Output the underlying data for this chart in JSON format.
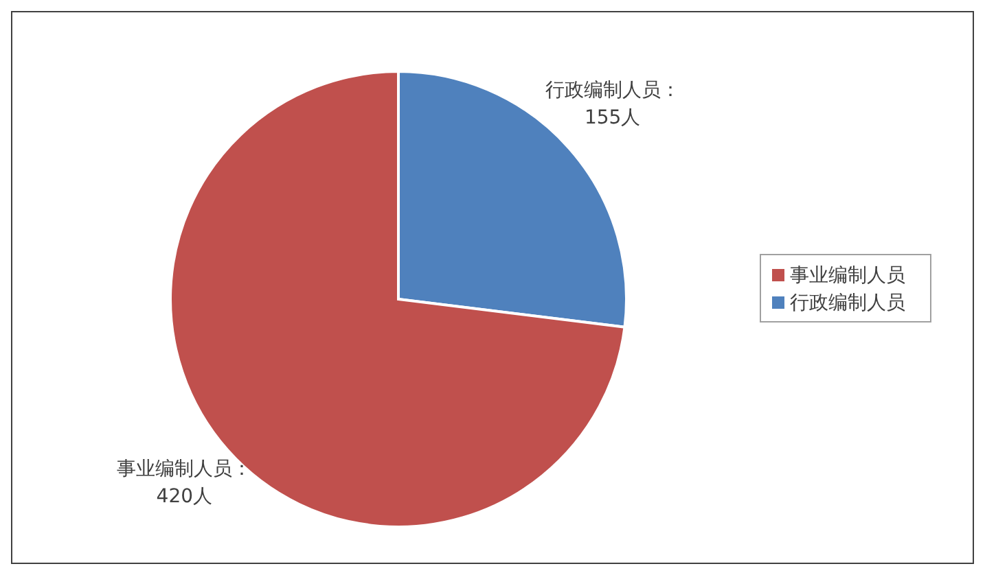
{
  "chart_data": {
    "type": "pie",
    "categories": [
      "行政编制人员",
      "事业编制人员"
    ],
    "values": [
      155,
      420
    ],
    "colors": [
      "#4f81bd",
      "#c0504d"
    ],
    "value_labels": [
      "行政编制人员：\n155人",
      "事业编制人员：\n420人"
    ],
    "legend": "right"
  }
}
